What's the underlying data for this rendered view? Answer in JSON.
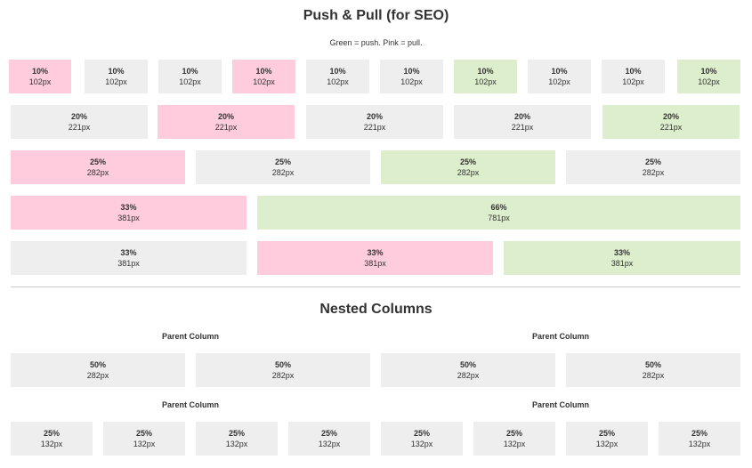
{
  "push_pull": {
    "title": "Push & Pull (for SEO)",
    "subtitle": "Green = push. Pink = pull.",
    "rows": [
      [
        {
          "pct": "10%",
          "px": "102px",
          "color": "pink"
        },
        {
          "pct": "10%",
          "px": "102px",
          "color": "gray"
        },
        {
          "pct": "10%",
          "px": "102px",
          "color": "gray"
        },
        {
          "pct": "10%",
          "px": "102px",
          "color": "pink"
        },
        {
          "pct": "10%",
          "px": "102px",
          "color": "gray"
        },
        {
          "pct": "10%",
          "px": "102px",
          "color": "gray"
        },
        {
          "pct": "10%",
          "px": "102px",
          "color": "green"
        },
        {
          "pct": "10%",
          "px": "102px",
          "color": "gray"
        },
        {
          "pct": "10%",
          "px": "102px",
          "color": "gray"
        },
        {
          "pct": "10%",
          "px": "102px",
          "color": "green"
        }
      ],
      [
        {
          "pct": "20%",
          "px": "221px",
          "color": "gray"
        },
        {
          "pct": "20%",
          "px": "221px",
          "color": "pink"
        },
        {
          "pct": "20%",
          "px": "221px",
          "color": "gray"
        },
        {
          "pct": "20%",
          "px": "221px",
          "color": "gray"
        },
        {
          "pct": "20%",
          "px": "221px",
          "color": "green"
        }
      ],
      [
        {
          "pct": "25%",
          "px": "282px",
          "color": "pink"
        },
        {
          "pct": "25%",
          "px": "282px",
          "color": "gray"
        },
        {
          "pct": "25%",
          "px": "282px",
          "color": "green"
        },
        {
          "pct": "25%",
          "px": "282px",
          "color": "gray"
        }
      ],
      [
        {
          "pct": "33%",
          "px": "381px",
          "color": "pink"
        },
        {
          "pct": "66%",
          "px": "781px",
          "color": "green"
        }
      ],
      [
        {
          "pct": "33%",
          "px": "381px",
          "color": "gray"
        },
        {
          "pct": "33%",
          "px": "381px",
          "color": "pink"
        },
        {
          "pct": "33%",
          "px": "381px",
          "color": "green"
        }
      ]
    ]
  },
  "nested": {
    "title": "Nested Columns",
    "groups": [
      {
        "parents": [
          "Parent Column",
          "Parent Column"
        ],
        "cells": [
          {
            "pct": "50%",
            "px": "282px"
          },
          {
            "pct": "50%",
            "px": "282px"
          },
          {
            "pct": "50%",
            "px": "282px"
          },
          {
            "pct": "50%",
            "px": "282px"
          }
        ]
      },
      {
        "parents": [
          "Parent Column",
          "Parent Column"
        ],
        "cells": [
          {
            "pct": "25%",
            "px": "132px"
          },
          {
            "pct": "25%",
            "px": "132px"
          },
          {
            "pct": "25%",
            "px": "132px"
          },
          {
            "pct": "25%",
            "px": "132px"
          },
          {
            "pct": "25%",
            "px": "132px"
          },
          {
            "pct": "25%",
            "px": "132px"
          },
          {
            "pct": "25%",
            "px": "132px"
          },
          {
            "pct": "25%",
            "px": "132px"
          }
        ]
      }
    ]
  },
  "colors": {
    "gray": "#eeeeee",
    "pink": "#ffccdd",
    "green": "#ddeecc"
  }
}
